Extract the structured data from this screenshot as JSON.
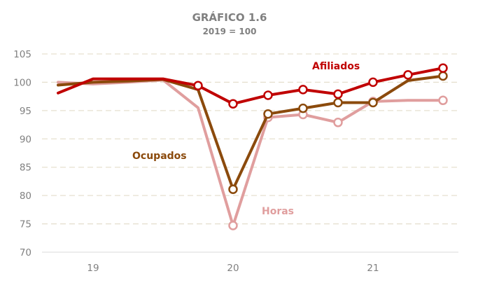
{
  "chart_data": {
    "type": "line",
    "title": "GRÁFICO 1.6",
    "subtitle": "2019 = 100",
    "ylim": [
      70,
      105
    ],
    "yticks": [
      70,
      75,
      80,
      85,
      90,
      95,
      100,
      105
    ],
    "x_tick_labels": [
      "19",
      "20",
      "21"
    ],
    "grid": true,
    "series": [
      {
        "name": "Horas",
        "color": "#e09e9e",
        "x": [
          "2018-10",
          "2019-01",
          "2019-04",
          "2019-07",
          "2019-10",
          "2020-01",
          "2020-04",
          "2020-07",
          "2020-10",
          "2021-01",
          "2021-04",
          "2021-07"
        ],
        "values": [
          100.0,
          99.7,
          100.0,
          100.4,
          95.5,
          74.7,
          93.8,
          94.3,
          92.9,
          96.6,
          96.8,
          96.8
        ],
        "markers": [
          false,
          false,
          false,
          false,
          false,
          true,
          true,
          true,
          true,
          true,
          false,
          true
        ]
      },
      {
        "name": "Ocupados",
        "color": "#8b4a0c",
        "x": [
          "2018-10",
          "2019-01",
          "2019-04",
          "2019-07",
          "2019-10",
          "2020-01",
          "2020-04",
          "2020-07",
          "2020-10",
          "2021-01",
          "2021-04",
          "2021-07"
        ],
        "values": [
          99.5,
          100.0,
          100.2,
          100.5,
          98.7,
          81.1,
          94.4,
          95.4,
          96.4,
          96.4,
          100.3,
          101.1
        ],
        "markers": [
          false,
          false,
          false,
          false,
          false,
          true,
          true,
          true,
          true,
          true,
          false,
          true
        ]
      },
      {
        "name": "Afiliados",
        "color": "#c00000",
        "x": [
          "2018-10",
          "2019-01",
          "2019-04",
          "2019-07",
          "2019-10",
          "2020-01",
          "2020-04",
          "2020-07",
          "2020-10",
          "2021-01",
          "2021-04",
          "2021-07"
        ],
        "values": [
          98.1,
          100.6,
          100.6,
          100.6,
          99.4,
          96.2,
          97.7,
          98.7,
          97.9,
          100.0,
          101.3,
          102.5
        ],
        "markers": [
          false,
          false,
          false,
          false,
          true,
          true,
          true,
          true,
          true,
          true,
          true,
          true
        ]
      }
    ]
  }
}
